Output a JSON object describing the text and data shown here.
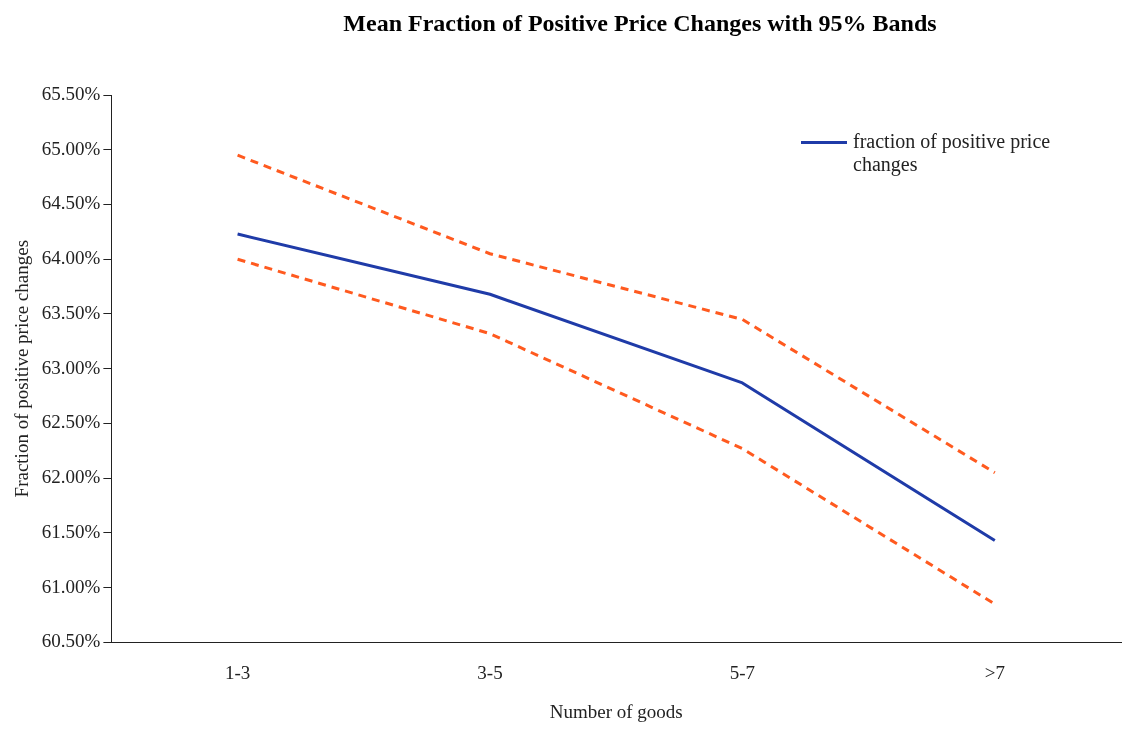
{
  "chart_data": {
    "type": "line",
    "title": "Mean Fraction of Positive Price Changes with 95% Bands",
    "xlabel": "Number of goods",
    "ylabel": "Fraction of positive price changes",
    "categories": [
      "1-3",
      "3-5",
      "5-7",
      ">7"
    ],
    "series": [
      {
        "name": "fraction of positive price changes",
        "color": "#1f3ba8",
        "line_style": "solid",
        "values": [
          64.23,
          63.68,
          62.87,
          61.43
        ]
      },
      {
        "color": "#ff5a1f",
        "line_style": "dashed",
        "values": [
          64.95,
          64.05,
          63.45,
          62.05
        ]
      },
      {
        "color": "#ff5a1f",
        "line_style": "dashed",
        "values": [
          64.0,
          63.32,
          62.27,
          60.85
        ]
      }
    ],
    "ylim": [
      60.5,
      65.5
    ],
    "yticks": [
      {
        "value": 60.5,
        "label": "60.50%"
      },
      {
        "value": 61,
        "label": "61.00%"
      },
      {
        "value": 61.5,
        "label": "61.50%"
      },
      {
        "value": 62,
        "label": "62.00%"
      },
      {
        "value": 62.5,
        "label": "62.50%"
      },
      {
        "value": 63,
        "label": "63.00%"
      },
      {
        "value": 63.5,
        "label": "63.50%"
      },
      {
        "value": 64,
        "label": "64.00%"
      },
      {
        "value": 64.5,
        "label": "64.50%"
      },
      {
        "value": 65,
        "label": "65.00%"
      },
      {
        "value": 65.5,
        "label": "65.50%"
      }
    ],
    "grid": false,
    "legend": "top right",
    "marker": "none"
  }
}
